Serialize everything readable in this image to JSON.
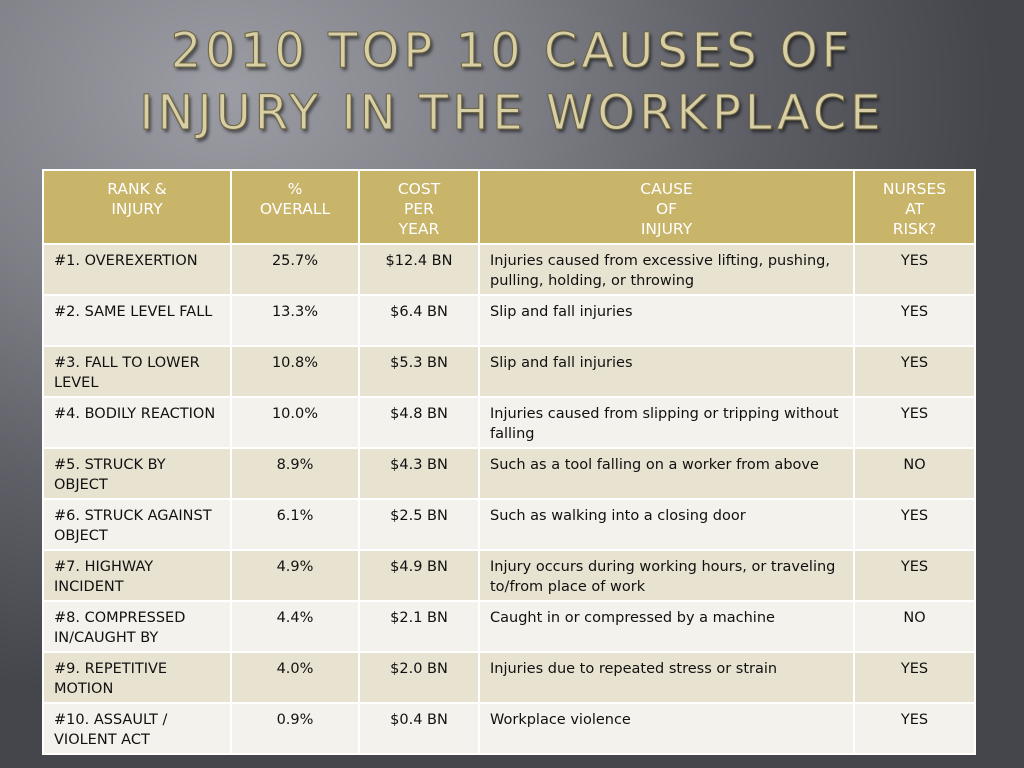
{
  "slide": {
    "title_line1": "2010 Top 10 Causes of",
    "title_line2": "Injury in the Workplace"
  },
  "colors": {
    "header_bg": "#c8b56a",
    "row_alt": "#e8e2d0",
    "row_light": "#f4f2ec",
    "title": "#d9cfa6"
  },
  "table": {
    "headers": [
      [
        "RANK &",
        "INJURY"
      ],
      [
        "%",
        "OVERALL"
      ],
      [
        "COST",
        "PER",
        "YEAR"
      ],
      [
        "CAUSE",
        "OF",
        "INJURY"
      ],
      [
        "NURSES",
        "AT",
        "RISK?"
      ]
    ],
    "rows": [
      {
        "rank": "#1. OVEREXERTION",
        "pct": "25.7%",
        "cost": "$12.4 BN",
        "cause": "Injuries caused from excessive lifting, pushing, pulling, holding, or throwing",
        "risk": "YES"
      },
      {
        "rank": "#2.  SAME LEVEL FALL",
        "pct": "13.3%",
        "cost": "$6.4 BN",
        "cause": "Slip and fall injuries",
        "risk": "YES"
      },
      {
        "rank": "#3. FALL TO LOWER LEVEL",
        "pct": "10.8%",
        "cost": "$5.3 BN",
        "cause": "Slip and fall injuries",
        "risk": "YES"
      },
      {
        "rank": "#4. BODILY REACTION",
        "pct": "10.0%",
        "cost": "$4.8 BN",
        "cause": "Injuries caused from slipping or tripping without falling",
        "risk": "YES"
      },
      {
        "rank": "#5. STRUCK BY OBJECT",
        "pct": "8.9%",
        "cost": "$4.3 BN",
        "cause": "Such as a tool falling on a worker from above",
        "risk": "NO"
      },
      {
        "rank": "#6. STRUCK AGAINST OBJECT",
        "pct": "6.1%",
        "cost": "$2.5 BN",
        "cause": "Such as walking into a closing door",
        "risk": "YES"
      },
      {
        "rank": "#7. HIGHWAY INCIDENT",
        "pct": "4.9%",
        "cost": "$4.9 BN",
        "cause": "Injury occurs during working hours, or traveling to/from place of work",
        "risk": "YES"
      },
      {
        "rank": "#8. COMPRESSED IN/CAUGHT BY",
        "pct": "4.4%",
        "cost": "$2.1 BN",
        "cause": "Caught in or compressed by a machine",
        "risk": "NO"
      },
      {
        "rank": "#9. REPETITIVE MOTION",
        "pct": "4.0%",
        "cost": "$2.0 BN",
        "cause": "Injuries due to repeated stress or strain",
        "risk": "YES"
      },
      {
        "rank": "#10. ASSAULT / VIOLENT ACT",
        "pct": "0.9%",
        "cost": "$0.4 BN",
        "cause": "Workplace violence",
        "risk": "YES"
      }
    ]
  }
}
